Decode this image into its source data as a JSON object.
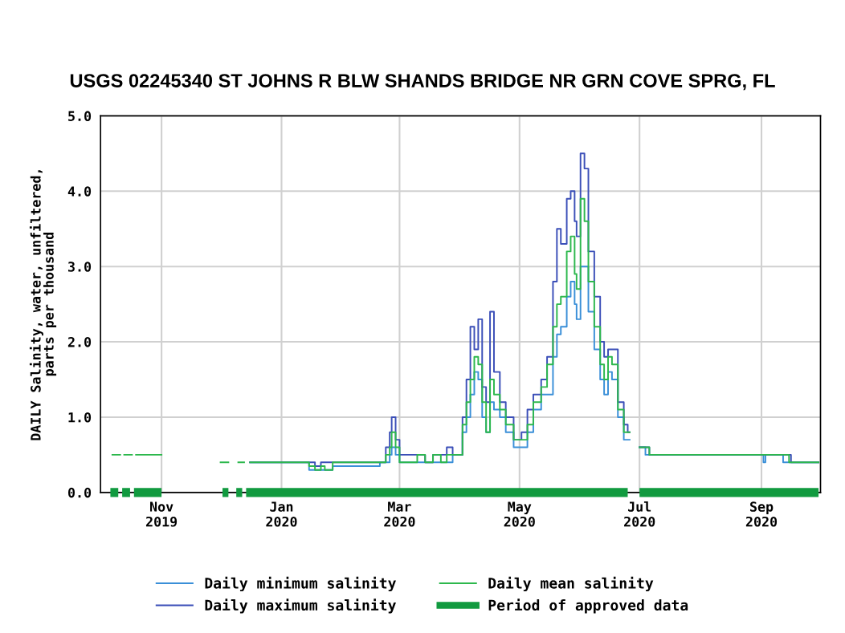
{
  "chart_data": {
    "type": "step",
    "title": "USGS 02245340 ST JOHNS R BLW SHANDS BRIDGE NR GRN COVE SPRG, FL",
    "ylabel": "DAILY Salinity, water, unfiltered,\nparts per thousand",
    "x": [
      "2019-10-07",
      "2019-10-10",
      "2019-10-11",
      "2019-10-13",
      "2019-10-16",
      "2019-10-17",
      "2019-10-19",
      "2019-10-29",
      "2019-10-30",
      "2019-10-31",
      "2019-11-01",
      "2019-12-01",
      "2019-12-04",
      "2019-12-05",
      "2019-12-10",
      "2019-12-13",
      "2019-12-16",
      "2020-01-14",
      "2020-01-15",
      "2020-01-18",
      "2020-01-21",
      "2020-01-23",
      "2020-01-27",
      "2020-02-20",
      "2020-02-23",
      "2020-02-25",
      "2020-02-26",
      "2020-02-28",
      "2020-03-01",
      "2020-03-08",
      "2020-03-10",
      "2020-03-14",
      "2020-03-18",
      "2020-03-22",
      "2020-03-25",
      "2020-03-28",
      "2020-04-02",
      "2020-04-04",
      "2020-04-06",
      "2020-04-08",
      "2020-04-10",
      "2020-04-12",
      "2020-04-14",
      "2020-04-16",
      "2020-04-18",
      "2020-04-21",
      "2020-04-24",
      "2020-04-28",
      "2020-05-02",
      "2020-05-05",
      "2020-05-08",
      "2020-05-12",
      "2020-05-15",
      "2020-05-18",
      "2020-05-20",
      "2020-05-22",
      "2020-05-25",
      "2020-05-27",
      "2020-05-29",
      "2020-05-30",
      "2020-06-01",
      "2020-06-03",
      "2020-06-05",
      "2020-06-08",
      "2020-06-11",
      "2020-06-13",
      "2020-06-15",
      "2020-06-17",
      "2020-06-20",
      "2020-06-23",
      "2020-06-25",
      "2020-06-26",
      "2020-07-01",
      "2020-07-04",
      "2020-07-06",
      "2020-09-01",
      "2020-09-02",
      "2020-09-03",
      "2020-09-10",
      "2020-09-12",
      "2020-09-15",
      "2020-09-16",
      "2020-09-30"
    ],
    "series": [
      {
        "name": "Daily minimum salinity",
        "color": "#3a8fd8",
        "values": [
          null,
          null,
          null,
          null,
          null,
          null,
          null,
          null,
          null,
          null,
          null,
          null,
          null,
          null,
          null,
          null,
          0.4,
          0.4,
          0.3,
          0.3,
          0.3,
          0.3,
          0.35,
          0.4,
          0.4,
          0.5,
          0.6,
          0.5,
          0.4,
          0.4,
          0.4,
          0.4,
          0.4,
          0.4,
          0.4,
          0.5,
          0.8,
          1.0,
          1.3,
          1.6,
          1.5,
          1.0,
          0.8,
          1.2,
          1.1,
          1.0,
          0.8,
          0.6,
          0.6,
          0.8,
          1.1,
          1.3,
          1.3,
          1.8,
          2.1,
          2.2,
          2.6,
          2.8,
          2.5,
          2.3,
          3.0,
          3.0,
          2.4,
          1.9,
          1.5,
          1.3,
          1.6,
          1.5,
          1.0,
          0.7,
          0.7,
          null,
          0.6,
          0.5,
          0.5,
          0.5,
          0.4,
          0.5,
          0.5,
          0.4,
          0.4,
          0.4,
          0.4
        ]
      },
      {
        "name": "Daily maximum salinity",
        "color": "#3b4fb8",
        "values": [
          null,
          null,
          null,
          null,
          null,
          null,
          null,
          null,
          null,
          null,
          null,
          null,
          null,
          null,
          null,
          null,
          0.4,
          0.4,
          0.4,
          0.35,
          0.4,
          0.4,
          0.4,
          0.4,
          0.6,
          0.8,
          1.0,
          0.7,
          0.5,
          0.5,
          0.5,
          0.4,
          0.5,
          0.5,
          0.6,
          0.5,
          1.0,
          1.5,
          2.2,
          1.9,
          2.3,
          1.4,
          1.2,
          2.4,
          1.6,
          1.2,
          1.0,
          0.7,
          0.8,
          1.1,
          1.3,
          1.5,
          1.8,
          2.8,
          3.5,
          3.3,
          3.9,
          4.0,
          3.6,
          3.4,
          4.5,
          4.3,
          3.2,
          2.6,
          2.0,
          1.8,
          1.9,
          1.9,
          1.2,
          0.9,
          0.8,
          null,
          0.6,
          0.6,
          0.5,
          0.5,
          0.5,
          0.5,
          0.5,
          0.5,
          0.5,
          0.4,
          0.4
        ]
      },
      {
        "name": "Daily mean salinity",
        "color": "#2db84d",
        "values": [
          0.5,
          0.5,
          null,
          0.5,
          0.5,
          null,
          0.5,
          0.5,
          0.5,
          0.5,
          null,
          0.4,
          0.4,
          null,
          0.4,
          null,
          0.4,
          0.4,
          0.35,
          0.3,
          0.35,
          0.3,
          0.4,
          0.4,
          0.5,
          0.6,
          0.8,
          0.6,
          0.4,
          0.4,
          0.5,
          0.4,
          0.5,
          0.4,
          0.5,
          0.5,
          0.9,
          1.2,
          1.5,
          1.8,
          1.7,
          1.2,
          0.8,
          1.5,
          1.3,
          1.1,
          0.9,
          0.7,
          0.7,
          0.9,
          1.2,
          1.4,
          1.7,
          2.2,
          2.5,
          2.6,
          3.2,
          3.4,
          2.9,
          2.7,
          3.9,
          3.6,
          2.8,
          2.2,
          1.7,
          1.5,
          1.8,
          1.7,
          1.1,
          0.8,
          0.8,
          null,
          0.6,
          0.6,
          0.5,
          0.5,
          0.5,
          0.5,
          0.5,
          0.5,
          0.4,
          0.4,
          0.4
        ]
      },
      {
        "name": "Period of approved data",
        "type": "line",
        "color": "#119a3f",
        "x": [
          "2019-10-06",
          "2019-10-10",
          "2019-10-11",
          "2019-10-12",
          "2019-10-16",
          "2019-10-17",
          "2019-10-18",
          "2019-11-01",
          "2019-11-15",
          "2019-12-02",
          "2019-12-05",
          "2019-12-07",
          "2019-12-09",
          "2019-12-12",
          "2019-12-13",
          "2019-12-14",
          "2020-06-25",
          "2020-06-28",
          "2020-07-01",
          "2020-09-30"
        ],
        "values": [
          0,
          0,
          null,
          0,
          0,
          null,
          0,
          0,
          null,
          0,
          0,
          null,
          0,
          0,
          null,
          0,
          0,
          null,
          0,
          0
        ]
      }
    ],
    "xlim": [
      "2019-10-01",
      "2020-10-01"
    ],
    "xticks": [
      {
        "value": "2019-11-01",
        "label": "Nov\n2019"
      },
      {
        "value": "2020-01-01",
        "label": "Jan\n2020"
      },
      {
        "value": "2020-03-01",
        "label": "Mar\n2020"
      },
      {
        "value": "2020-05-01",
        "label": "May\n2020"
      },
      {
        "value": "2020-07-01",
        "label": "Jul\n2020"
      },
      {
        "value": "2020-09-01",
        "label": "Sep\n2020"
      }
    ],
    "ylim": [
      0,
      5
    ],
    "yticks": [
      {
        "value": 0,
        "label": "0.0"
      },
      {
        "value": 1,
        "label": "1.0"
      },
      {
        "value": 2,
        "label": "2.0"
      },
      {
        "value": 3,
        "label": "3.0"
      },
      {
        "value": 4,
        "label": "4.0"
      },
      {
        "value": 5,
        "label": "5.0"
      }
    ],
    "grid": true,
    "legend": "bottom"
  }
}
